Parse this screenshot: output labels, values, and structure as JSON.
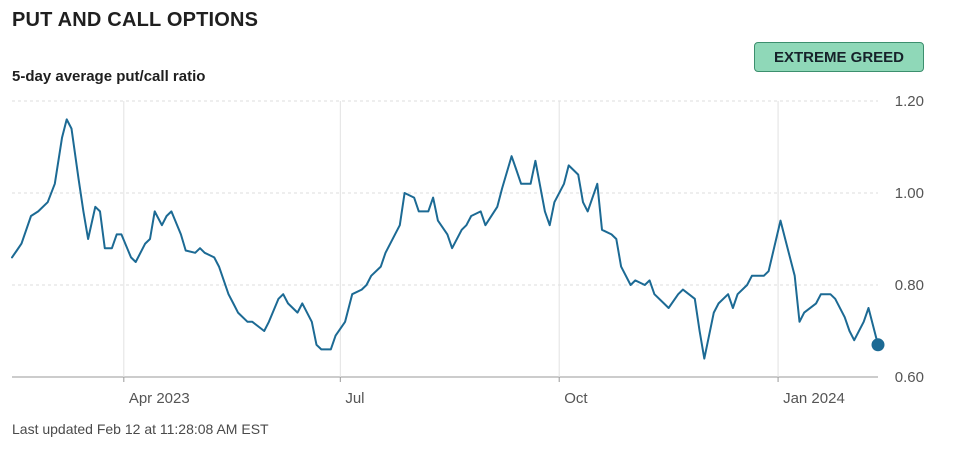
{
  "header": {
    "title": "PUT AND CALL OPTIONS",
    "subtitle": "5-day average put/call ratio",
    "badge": "EXTREME GREED",
    "badge_color": "#8fd8b8"
  },
  "footer": {
    "last_updated": "Last updated Feb 12 at 11:28:08 AM EST"
  },
  "chart_data": {
    "type": "line",
    "title": "5-day average put/call ratio",
    "xlabel": "",
    "ylabel": "",
    "ylim": [
      0.6,
      1.2
    ],
    "y_ticks": [
      0.6,
      0.8,
      1.0,
      1.2
    ],
    "y_tick_labels": [
      "0.60",
      "0.80",
      "1.00",
      "1.20"
    ],
    "x_tick_labels": [
      {
        "date": "2023-04-01",
        "label": "Apr 2023"
      },
      {
        "date": "2023-07-01",
        "label": "Jul"
      },
      {
        "date": "2023-10-01",
        "label": "Oct"
      },
      {
        "date": "2024-01-01",
        "label": "Jan 2024"
      }
    ],
    "xlim": [
      "2023-02-13",
      "2024-02-12"
    ],
    "grid": true,
    "line_color": "#1c6a94",
    "series": [
      {
        "x": [
          "2023-02-13",
          "2023-02-15",
          "2023-02-17",
          "2023-02-21",
          "2023-02-24",
          "2023-02-28",
          "2023-03-03",
          "2023-03-06",
          "2023-03-08",
          "2023-03-10",
          "2023-03-13",
          "2023-03-15",
          "2023-03-17",
          "2023-03-20",
          "2023-03-22",
          "2023-03-24",
          "2023-03-27",
          "2023-03-29",
          "2023-03-31",
          "2023-04-04",
          "2023-04-06",
          "2023-04-10",
          "2023-04-12",
          "2023-04-14",
          "2023-04-17",
          "2023-04-19",
          "2023-04-21",
          "2023-04-25",
          "2023-04-27",
          "2023-05-01",
          "2023-05-03",
          "2023-05-05",
          "2023-05-09",
          "2023-05-11",
          "2023-05-15",
          "2023-05-17",
          "2023-05-19",
          "2023-05-23",
          "2023-05-25",
          "2023-05-30",
          "2023-06-01",
          "2023-06-05",
          "2023-06-07",
          "2023-06-09",
          "2023-06-13",
          "2023-06-15",
          "2023-06-19",
          "2023-06-21",
          "2023-06-23",
          "2023-06-27",
          "2023-06-29",
          "2023-07-03",
          "2023-07-06",
          "2023-07-10",
          "2023-07-12",
          "2023-07-14",
          "2023-07-18",
          "2023-07-20",
          "2023-07-24",
          "2023-07-26",
          "2023-07-28",
          "2023-08-01",
          "2023-08-03",
          "2023-08-07",
          "2023-08-09",
          "2023-08-11",
          "2023-08-15",
          "2023-08-17",
          "2023-08-21",
          "2023-08-23",
          "2023-08-25",
          "2023-08-29",
          "2023-08-31",
          "2023-09-05",
          "2023-09-07",
          "2023-09-11",
          "2023-09-13",
          "2023-09-15",
          "2023-09-19",
          "2023-09-21",
          "2023-09-25",
          "2023-09-27",
          "2023-09-29",
          "2023-10-03",
          "2023-10-05",
          "2023-10-09",
          "2023-10-11",
          "2023-10-13",
          "2023-10-17",
          "2023-10-19",
          "2023-10-23",
          "2023-10-25",
          "2023-10-27",
          "2023-10-31",
          "2023-11-02",
          "2023-11-06",
          "2023-11-08",
          "2023-11-10",
          "2023-11-14",
          "2023-11-16",
          "2023-11-20",
          "2023-11-22",
          "2023-11-27",
          "2023-11-29",
          "2023-12-01",
          "2023-12-05",
          "2023-12-07",
          "2023-12-11",
          "2023-12-13",
          "2023-12-15",
          "2023-12-19",
          "2023-12-21",
          "2023-12-26",
          "2023-12-28",
          "2024-01-02",
          "2024-01-04",
          "2024-01-08",
          "2024-01-10",
          "2024-01-12",
          "2024-01-17",
          "2024-01-19",
          "2024-01-23",
          "2024-01-25",
          "2024-01-29",
          "2024-01-31",
          "2024-02-02",
          "2024-02-06",
          "2024-02-08",
          "2024-02-12"
        ],
        "y": [
          0.86,
          0.875,
          0.89,
          0.95,
          0.96,
          0.98,
          1.02,
          1.12,
          1.16,
          1.14,
          1.03,
          0.96,
          0.9,
          0.97,
          0.96,
          0.88,
          0.88,
          0.91,
          0.91,
          0.86,
          0.85,
          0.89,
          0.9,
          0.96,
          0.93,
          0.95,
          0.96,
          0.91,
          0.875,
          0.87,
          0.88,
          0.87,
          0.86,
          0.84,
          0.78,
          0.76,
          0.74,
          0.72,
          0.72,
          0.7,
          0.72,
          0.77,
          0.78,
          0.76,
          0.74,
          0.76,
          0.72,
          0.67,
          0.66,
          0.66,
          0.69,
          0.72,
          0.78,
          0.79,
          0.8,
          0.82,
          0.84,
          0.87,
          0.91,
          0.93,
          1.0,
          0.99,
          0.96,
          0.96,
          0.99,
          0.94,
          0.91,
          0.88,
          0.92,
          0.93,
          0.95,
          0.96,
          0.93,
          0.97,
          1.01,
          1.08,
          1.05,
          1.02,
          1.02,
          1.07,
          0.96,
          0.93,
          0.98,
          1.02,
          1.06,
          1.04,
          0.98,
          0.96,
          1.02,
          0.92,
          0.91,
          0.9,
          0.84,
          0.8,
          0.81,
          0.8,
          0.81,
          0.78,
          0.76,
          0.75,
          0.78,
          0.79,
          0.77,
          0.7,
          0.64,
          0.74,
          0.76,
          0.78,
          0.75,
          0.78,
          0.8,
          0.82,
          0.82,
          0.83,
          0.94,
          0.9,
          0.82,
          0.72,
          0.74,
          0.76,
          0.78,
          0.78,
          0.77,
          0.73,
          0.7,
          0.68,
          0.72,
          0.75,
          0.67
        ]
      }
    ],
    "last_point": {
      "date": "2024-02-12",
      "value": 0.67
    }
  }
}
